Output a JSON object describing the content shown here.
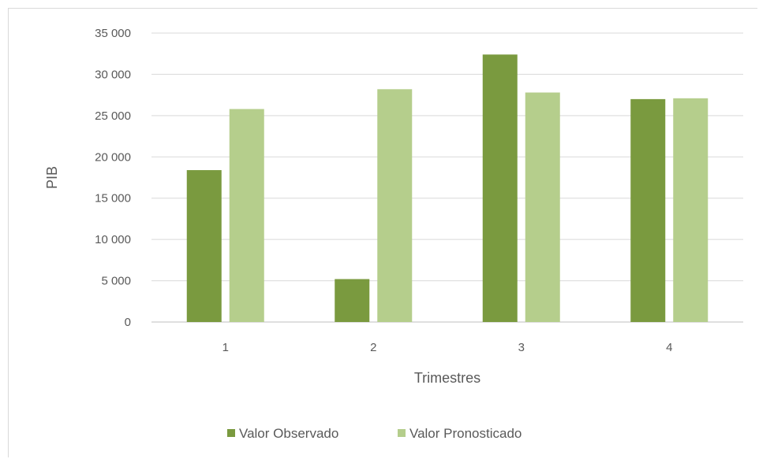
{
  "chart_data": {
    "type": "bar",
    "title": "",
    "xlabel": "Trimestres",
    "ylabel": "PIB",
    "categories": [
      "1",
      "2",
      "3",
      "4"
    ],
    "series": [
      {
        "name": "Valor Observado",
        "values": [
          18400,
          5200,
          32400,
          27000
        ],
        "color": "#7a9a3f"
      },
      {
        "name": "Valor Pronosticado",
        "values": [
          25800,
          28200,
          27800,
          27100
        ],
        "color": "#b5ce8c"
      }
    ],
    "ylim": [
      0,
      35000
    ],
    "yticks": [
      0,
      5000,
      10000,
      15000,
      20000,
      25000,
      30000,
      35000
    ],
    "ytick_labels": [
      "0",
      "5 000",
      "10 000",
      "15 000",
      "20 000",
      "25 000",
      "30 000",
      "35 000"
    ],
    "grid": true,
    "legend_position": "bottom"
  }
}
